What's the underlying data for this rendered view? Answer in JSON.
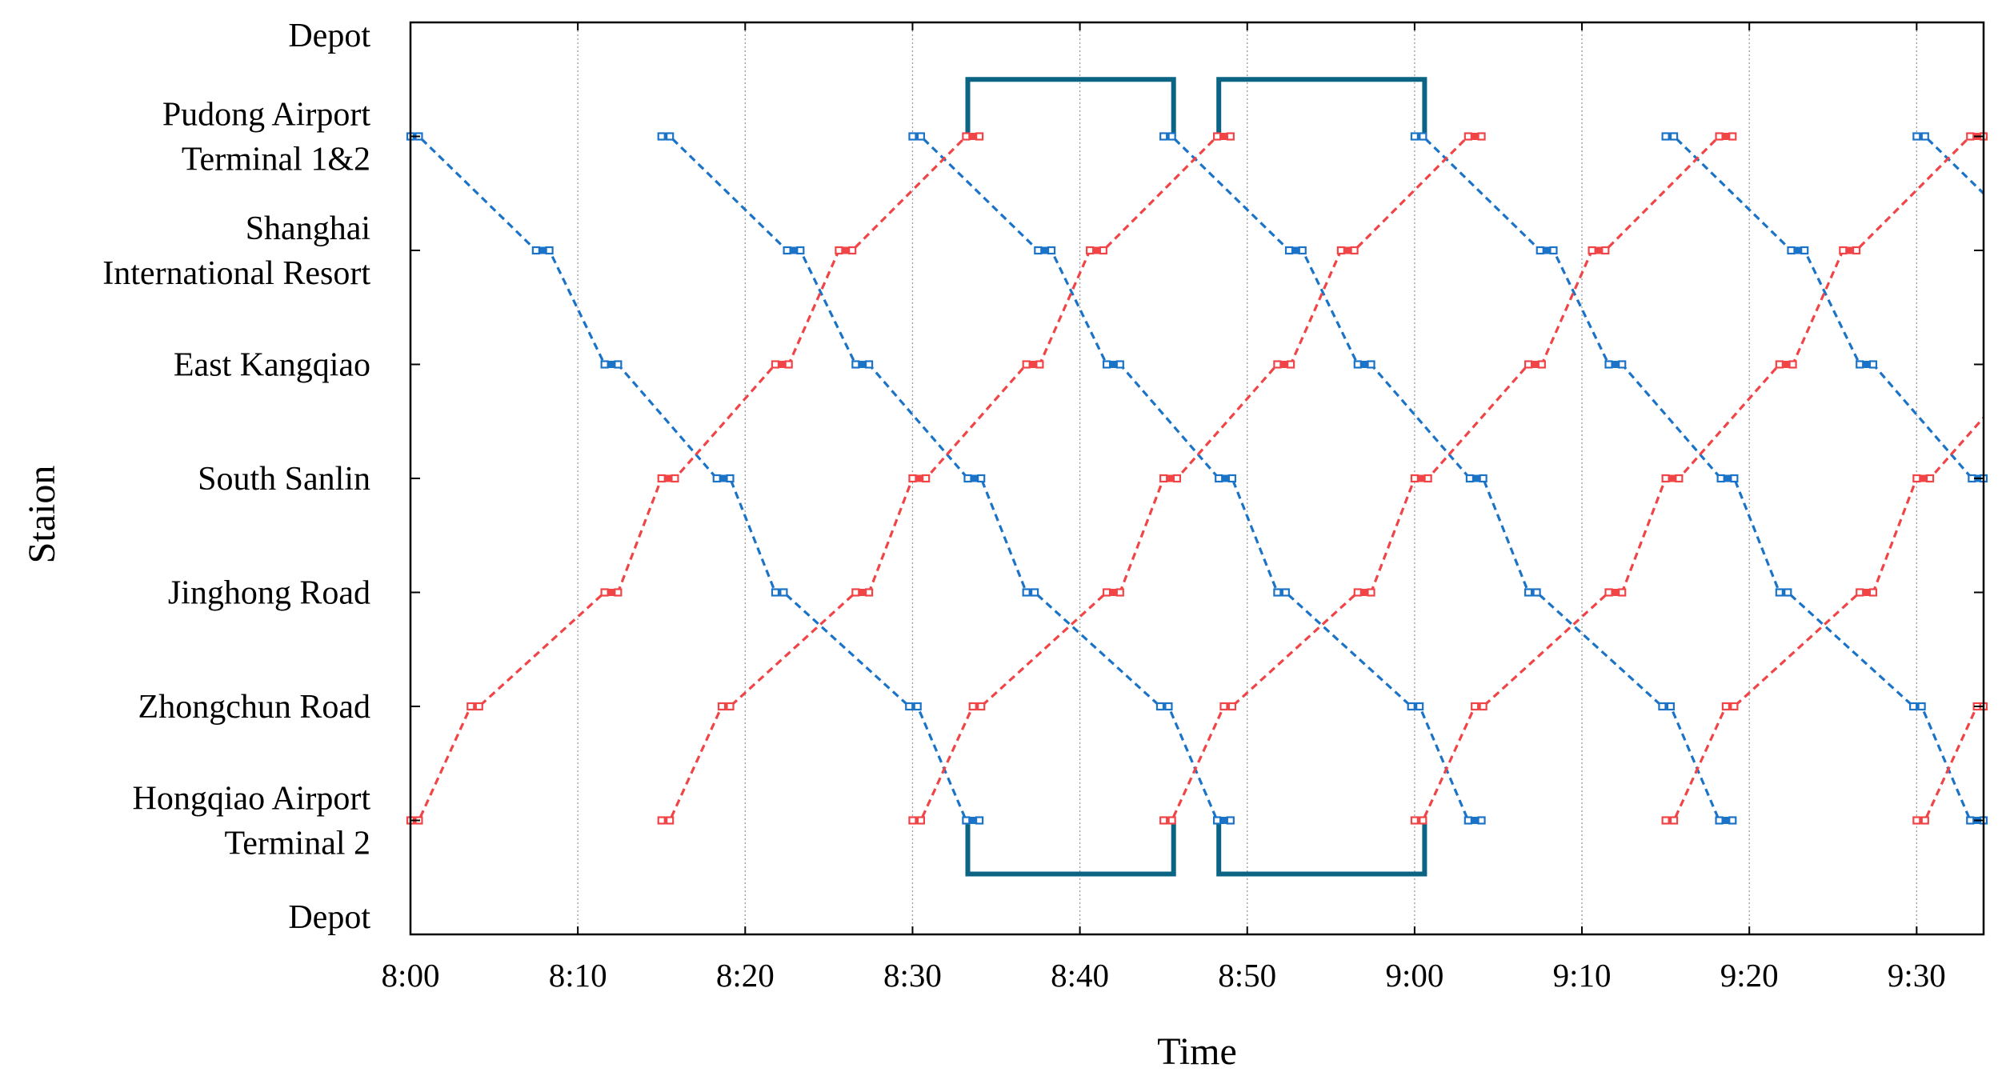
{
  "chart_data": {
    "type": "line",
    "title": "",
    "xlabel": "Time",
    "ylabel": "Staion",
    "x_unit": "minutes after 8:00",
    "xlim": [
      0,
      94
    ],
    "x_ticks": [
      {
        "value": 0,
        "label": "8:00"
      },
      {
        "value": 10,
        "label": "8:10"
      },
      {
        "value": 20,
        "label": "8:20"
      },
      {
        "value": 30,
        "label": "8:30"
      },
      {
        "value": 40,
        "label": "8:40"
      },
      {
        "value": 50,
        "label": "8:50"
      },
      {
        "value": 60,
        "label": "9:00"
      },
      {
        "value": 70,
        "label": "9:10"
      },
      {
        "value": 80,
        "label": "9:20"
      },
      {
        "value": 90,
        "label": "9:30"
      }
    ],
    "stations": [
      {
        "name": "Depot",
        "lines": [
          "Depot"
        ]
      },
      {
        "name": "Pudong Airport Terminal 1&2",
        "lines": [
          "Pudong Airport",
          "Terminal 1&2"
        ]
      },
      {
        "name": "Shanghai International Resort",
        "lines": [
          "Shanghai",
          "International Resort"
        ]
      },
      {
        "name": "East Kangqiao",
        "lines": [
          "East Kangqiao"
        ]
      },
      {
        "name": "South Sanlin",
        "lines": [
          "South Sanlin"
        ]
      },
      {
        "name": "Jinghong Road",
        "lines": [
          "Jinghong Road"
        ]
      },
      {
        "name": "Zhongchun Road",
        "lines": [
          "Zhongchun Road"
        ]
      },
      {
        "name": "Hongqiao Airport Terminal 2",
        "lines": [
          "Hongqiao Airport",
          "Terminal 2"
        ]
      },
      {
        "name": "Depot",
        "lines": [
          "Depot"
        ]
      }
    ],
    "grid": "vertical dotted",
    "legend": "none",
    "colors": {
      "down": "#1a73c7",
      "up": "#f04447",
      "depot": "#0b6483",
      "axis": "#000000",
      "grid": "#9a9a9a"
    },
    "down_offsets": [
      [
        0,
        0.5
      ],
      [
        7.5,
        8.3
      ],
      [
        11.6,
        12.4
      ],
      [
        18.3,
        19.1
      ],
      [
        21.8,
        22.3
      ],
      [
        29.8,
        30.3
      ],
      [
        33.2,
        34
      ]
    ],
    "up_offsets": [
      [
        0,
        0.5
      ],
      [
        3.6,
        4.1
      ],
      [
        11.6,
        12.4
      ],
      [
        15,
        15.8
      ],
      [
        21.8,
        22.6
      ],
      [
        25.6,
        26.4
      ],
      [
        33.2,
        34
      ]
    ],
    "series": [
      {
        "direction": "down",
        "start": 0
      },
      {
        "direction": "down",
        "start": 15
      },
      {
        "direction": "down",
        "start": 30
      },
      {
        "direction": "down",
        "start": 45
      },
      {
        "direction": "down",
        "start": 60
      },
      {
        "direction": "down",
        "start": 75
      },
      {
        "direction": "down",
        "start": 90
      },
      {
        "direction": "up",
        "start": 0
      },
      {
        "direction": "up",
        "start": 15
      },
      {
        "direction": "up",
        "start": 30
      },
      {
        "direction": "up",
        "start": 45
      },
      {
        "direction": "up",
        "start": 60
      },
      {
        "direction": "up",
        "start": 75
      },
      {
        "direction": "up",
        "start": 90
      }
    ],
    "depot_runs": [
      {
        "position": "top",
        "points": [
          [
            33.3,
            1
          ],
          [
            33.3,
            0.5
          ],
          [
            45.6,
            0.5
          ],
          [
            45.6,
            1
          ]
        ]
      },
      {
        "position": "top",
        "points": [
          [
            48.3,
            1
          ],
          [
            48.3,
            0.5
          ],
          [
            60.6,
            0.5
          ],
          [
            60.6,
            1
          ]
        ]
      },
      {
        "position": "bottom",
        "points": [
          [
            33.3,
            7
          ],
          [
            33.3,
            7.47
          ],
          [
            45.6,
            7.47
          ],
          [
            45.6,
            7
          ]
        ]
      },
      {
        "position": "bottom",
        "points": [
          [
            48.3,
            7
          ],
          [
            48.3,
            7.47
          ],
          [
            60.6,
            7.47
          ],
          [
            60.6,
            7
          ]
        ]
      }
    ]
  }
}
